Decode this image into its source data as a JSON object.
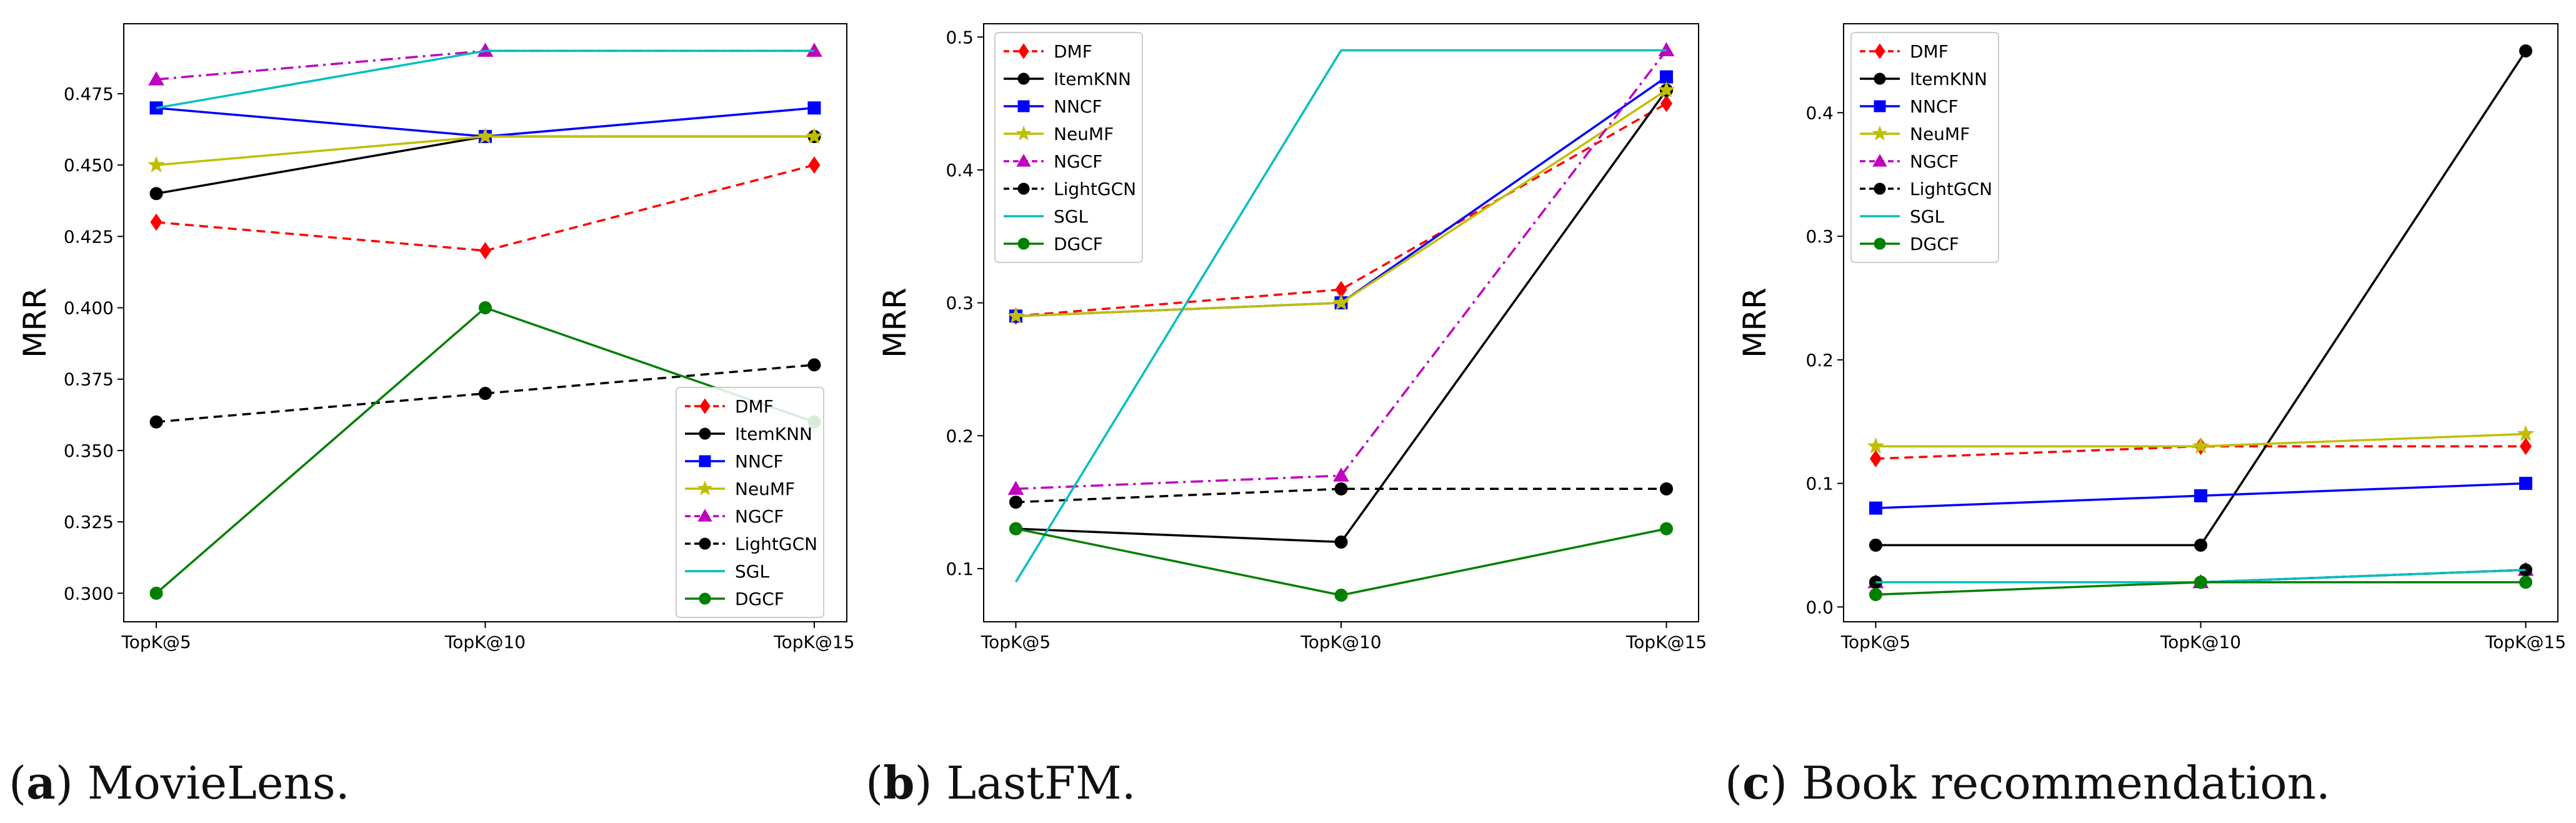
{
  "colors": {
    "DMF": "#ff0000",
    "ItemKNN": "#000000",
    "NNCF": "#0000ff",
    "NeuMF": "#bfbf00",
    "NGCF": "#bf00bf",
    "LightGCN": "#000000",
    "SGL": "#00bfbf",
    "DGCF": "#008000"
  },
  "chart_data": [
    {
      "type": "line",
      "panel": "a",
      "caption": {
        "letter": "a",
        "text": "MovieLens."
      },
      "ylabel": "MRR",
      "categories": [
        "TopK@5",
        "TopK@10",
        "TopK@15"
      ],
      "ylim": [
        0.29,
        0.4995
      ],
      "yticks": [
        "0.300",
        "0.325",
        "0.350",
        "0.375",
        "0.400",
        "0.425",
        "0.450",
        "0.475"
      ],
      "legend_position": "lower-right",
      "series": [
        {
          "name": "DMF",
          "values": [
            0.43,
            0.42,
            0.45
          ]
        },
        {
          "name": "ItemKNN",
          "values": [
            0.44,
            0.46,
            0.46
          ]
        },
        {
          "name": "NNCF",
          "values": [
            0.47,
            0.46,
            0.47
          ]
        },
        {
          "name": "NeuMF",
          "values": [
            0.45,
            0.46,
            0.46
          ]
        },
        {
          "name": "NGCF",
          "values": [
            0.48,
            0.49,
            0.49
          ]
        },
        {
          "name": "LightGCN",
          "values": [
            0.36,
            0.37,
            0.38
          ]
        },
        {
          "name": "SGL",
          "values": [
            0.47,
            0.49,
            0.49
          ]
        },
        {
          "name": "DGCF",
          "values": [
            0.3,
            0.4,
            0.36
          ]
        }
      ]
    },
    {
      "type": "line",
      "panel": "b",
      "caption": {
        "letter": "b",
        "text": "LastFM."
      },
      "ylabel": "MRR",
      "categories": [
        "TopK@5",
        "TopK@10",
        "TopK@15"
      ],
      "ylim": [
        0.06,
        0.51
      ],
      "yticks": [
        "0.1",
        "0.2",
        "0.3",
        "0.4",
        "0.5"
      ],
      "legend_position": "upper-left",
      "series": [
        {
          "name": "DMF",
          "values": [
            0.29,
            0.31,
            0.45
          ]
        },
        {
          "name": "ItemKNN",
          "values": [
            0.13,
            0.12,
            0.46
          ]
        },
        {
          "name": "NNCF",
          "values": [
            0.29,
            0.3,
            0.47
          ]
        },
        {
          "name": "NeuMF",
          "values": [
            0.29,
            0.3,
            0.46
          ]
        },
        {
          "name": "NGCF",
          "values": [
            0.16,
            0.17,
            0.49
          ]
        },
        {
          "name": "LightGCN",
          "values": [
            0.15,
            0.16,
            0.16
          ]
        },
        {
          "name": "SGL",
          "values": [
            0.09,
            0.49,
            0.49
          ]
        },
        {
          "name": "DGCF",
          "values": [
            0.13,
            0.08,
            0.13
          ]
        }
      ]
    },
    {
      "type": "line",
      "panel": "c",
      "caption": {
        "letter": "c",
        "text": "Book recommendation."
      },
      "ylabel": "MRR",
      "categories": [
        "TopK@5",
        "TopK@10",
        "TopK@15"
      ],
      "ylim": [
        -0.012,
        0.472
      ],
      "yticks": [
        "0.0",
        "0.1",
        "0.2",
        "0.3",
        "0.4"
      ],
      "legend_position": "upper-left",
      "series": [
        {
          "name": "DMF",
          "values": [
            0.12,
            0.13,
            0.13
          ]
        },
        {
          "name": "ItemKNN",
          "values": [
            0.05,
            0.05,
            0.45
          ]
        },
        {
          "name": "NNCF",
          "values": [
            0.08,
            0.09,
            0.1
          ]
        },
        {
          "name": "NeuMF",
          "values": [
            0.13,
            0.13,
            0.14
          ]
        },
        {
          "name": "NGCF",
          "values": [
            0.02,
            0.02,
            0.03
          ]
        },
        {
          "name": "LightGCN",
          "values": [
            0.02,
            0.02,
            0.03
          ]
        },
        {
          "name": "SGL",
          "values": [
            0.02,
            0.02,
            0.03
          ]
        },
        {
          "name": "DGCF",
          "values": [
            0.01,
            0.02,
            0.02
          ]
        }
      ]
    }
  ]
}
